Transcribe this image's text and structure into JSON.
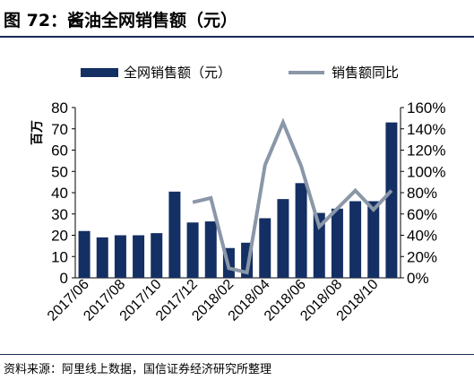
{
  "header": {
    "title": "图 72：酱油全网销售额（元）"
  },
  "footer": {
    "source": "资料来源：阿里线上数据，国信证券经济研究所整理"
  },
  "chart_data": {
    "type": "bar",
    "categories": [
      "2017/06",
      "2017/07",
      "2017/08",
      "2017/09",
      "2017/10",
      "2017/11",
      "2017/12",
      "2018/01",
      "2018/02",
      "2018/03",
      "2018/04",
      "2018/05",
      "2018/06",
      "2018/07",
      "2018/08",
      "2018/09",
      "2018/10",
      "2018/11"
    ],
    "x_tick_labels": [
      "2017/06",
      "2017/08",
      "2017/10",
      "2017/12",
      "2018/02",
      "2018/04",
      "2018/06",
      "2018/08",
      "2018/10"
    ],
    "series": [
      {
        "name": "全网销售额（元）",
        "type": "bar",
        "axis": "left",
        "color": "#142f63",
        "values": [
          22,
          19,
          20,
          20,
          21,
          40.5,
          26,
          26.5,
          14,
          16.5,
          28,
          37,
          44.5,
          30.5,
          32.5,
          36,
          36,
          73
        ]
      },
      {
        "name": "销售额同比",
        "type": "line",
        "axis": "right",
        "color": "#8a97a8",
        "values": [
          null,
          null,
          null,
          null,
          null,
          null,
          0.71,
          0.75,
          0.09,
          0.05,
          1.06,
          1.46,
          1.05,
          0.48,
          0.65,
          0.82,
          0.64,
          0.82
        ]
      }
    ],
    "y_left": {
      "label": "百万",
      "min": 0,
      "max": 80,
      "ticks": [
        "0",
        "10",
        "20",
        "30",
        "40",
        "50",
        "60",
        "70",
        "80"
      ]
    },
    "y_right": {
      "label": "",
      "min": 0,
      "max": 1.6,
      "ticks": [
        "0%",
        "20%",
        "40%",
        "60%",
        "80%",
        "100%",
        "120%",
        "140%",
        "160%"
      ]
    },
    "legend": {
      "position": "top"
    },
    "grid": false
  }
}
